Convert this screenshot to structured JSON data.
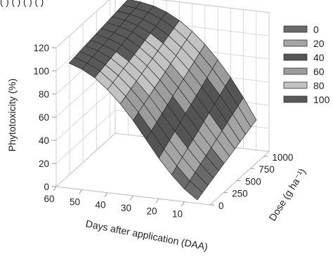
{
  "chart_data": {
    "type": "surface3d",
    "title": "",
    "top_legend_text": "(       ) (       ) (       ) (       )",
    "xlabel": "Days after application  (DAA)",
    "ylabel": "Dose (g ha⁻¹)",
    "zlabel": "Phytotoxicity (%)",
    "x_ticks": [
      "60",
      "50",
      "40",
      "30",
      "20",
      "10"
    ],
    "y_ticks": [
      "0",
      "250",
      "500",
      "750",
      "1000"
    ],
    "z_ticks": [
      "0",
      "20",
      "40",
      "60",
      "80",
      "100",
      "120"
    ],
    "xlim": [
      0,
      60
    ],
    "ylim": [
      0,
      1100
    ],
    "zlim": [
      0,
      120
    ],
    "grid": true,
    "legend_position": "right",
    "legend": [
      {
        "label": "0",
        "color": "#6b6b6b"
      },
      {
        "label": "20",
        "color": "#a4a4a4"
      },
      {
        "label": "40",
        "color": "#545454"
      },
      {
        "label": "60",
        "color": "#9c9c9c"
      },
      {
        "label": "80",
        "color": "#c2c2c2"
      },
      {
        "label": "100",
        "color": "#595959"
      }
    ],
    "surface": {
      "days": [
        5,
        10,
        15,
        20,
        25,
        30,
        35,
        40,
        45,
        50,
        55
      ],
      "doses": [
        0,
        100,
        200,
        300,
        400,
        500,
        600,
        700,
        800,
        900,
        1000,
        1100
      ],
      "phytotoxicity_at_dose_0": [
        3,
        11,
        22,
        35,
        50,
        65,
        78,
        89,
        98,
        104,
        108
      ],
      "phytotoxicity_at_dose_1100": [
        26,
        44,
        60,
        74,
        86,
        96,
        104,
        110,
        114,
        116,
        117
      ]
    }
  }
}
